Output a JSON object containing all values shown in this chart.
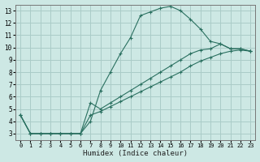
{
  "xlabel": "Humidex (Indice chaleur)",
  "xlim": [
    -0.5,
    23.5
  ],
  "ylim": [
    2.5,
    13.5
  ],
  "xticks": [
    0,
    1,
    2,
    3,
    4,
    5,
    6,
    7,
    8,
    9,
    10,
    11,
    12,
    13,
    14,
    15,
    16,
    17,
    18,
    19,
    20,
    21,
    22,
    23
  ],
  "yticks": [
    3,
    4,
    5,
    6,
    7,
    8,
    9,
    10,
    11,
    12,
    13
  ],
  "background_color": "#cde8e4",
  "grid_color": "#aaccc8",
  "line_color": "#2a7060",
  "line1_x": [
    0,
    1,
    2,
    3,
    4,
    5,
    6,
    7,
    8,
    9,
    10,
    11,
    12,
    13,
    14,
    15,
    16,
    17,
    18,
    19,
    20,
    21,
    22,
    23
  ],
  "line1_y": [
    4.5,
    3.0,
    3.0,
    3.0,
    3.0,
    3.0,
    3.0,
    4.0,
    6.5,
    8.0,
    9.5,
    10.8,
    12.6,
    12.9,
    13.2,
    13.35,
    13.0,
    12.3,
    11.5,
    10.5,
    10.3,
    9.9,
    9.9,
    9.7
  ],
  "line2_x": [
    0,
    1,
    2,
    3,
    4,
    5,
    6,
    7,
    8,
    9,
    10,
    11,
    12,
    13,
    14,
    15,
    16,
    17,
    18,
    19,
    20,
    21,
    22,
    23
  ],
  "line2_y": [
    4.5,
    3.0,
    3.0,
    3.0,
    3.0,
    3.0,
    3.0,
    5.5,
    5.0,
    5.5,
    6.0,
    6.5,
    7.0,
    7.5,
    8.0,
    8.5,
    9.0,
    9.5,
    9.8,
    9.9,
    10.3,
    9.9,
    9.9,
    9.7
  ],
  "line3_x": [
    0,
    1,
    2,
    3,
    4,
    5,
    6,
    7,
    8,
    9,
    10,
    11,
    12,
    13,
    14,
    15,
    16,
    17,
    18,
    19,
    20,
    21,
    22,
    23
  ],
  "line3_y": [
    4.5,
    3.0,
    3.0,
    3.0,
    3.0,
    3.0,
    3.0,
    4.5,
    4.8,
    5.2,
    5.6,
    6.0,
    6.4,
    6.8,
    7.2,
    7.6,
    8.0,
    8.5,
    8.9,
    9.2,
    9.5,
    9.7,
    9.8,
    9.7
  ]
}
